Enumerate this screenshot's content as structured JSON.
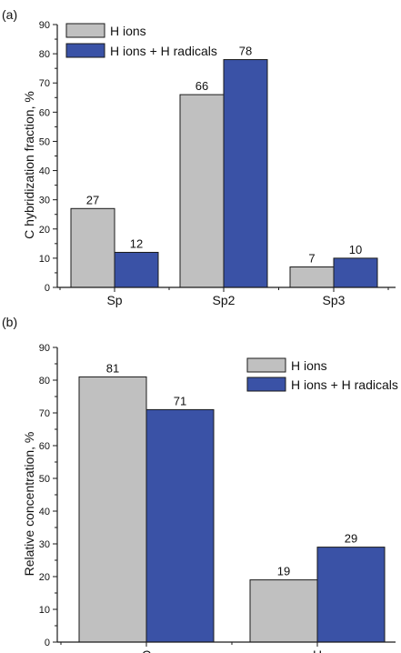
{
  "chart_data": [
    {
      "panel_label": "(a)",
      "type": "bar",
      "ylabel": "C hybridization fraction, %",
      "categories": [
        "Sp",
        "Sp2",
        "Sp3"
      ],
      "ylim": [
        0,
        90
      ],
      "yticks": [
        0,
        10,
        20,
        30,
        40,
        50,
        60,
        70,
        80,
        90
      ],
      "grid": false,
      "legend_position": "top-left",
      "series": [
        {
          "name": "H ions",
          "color": "#c0c0c0",
          "values": [
            27,
            66,
            7
          ],
          "labels": [
            "27",
            "66",
            "7"
          ]
        },
        {
          "name": "H ions + H radicals",
          "color": "#3a52a6",
          "values": [
            12,
            78,
            10
          ],
          "labels": [
            "12",
            "78",
            "10"
          ]
        }
      ]
    },
    {
      "panel_label": "(b)",
      "type": "bar",
      "ylabel": "Relative concentration, %",
      "categories": [
        "C",
        "H"
      ],
      "ylim": [
        0,
        90
      ],
      "yticks": [
        0,
        10,
        20,
        30,
        40,
        50,
        60,
        70,
        80,
        90
      ],
      "grid": false,
      "legend_position": "top-right",
      "series": [
        {
          "name": "H ions",
          "color": "#c0c0c0",
          "values": [
            81,
            19
          ],
          "labels": [
            "81",
            "19"
          ]
        },
        {
          "name": "H ions + H radicals",
          "color": "#3a52a6",
          "values": [
            71,
            29
          ],
          "labels": [
            "71",
            "29"
          ]
        }
      ]
    }
  ]
}
